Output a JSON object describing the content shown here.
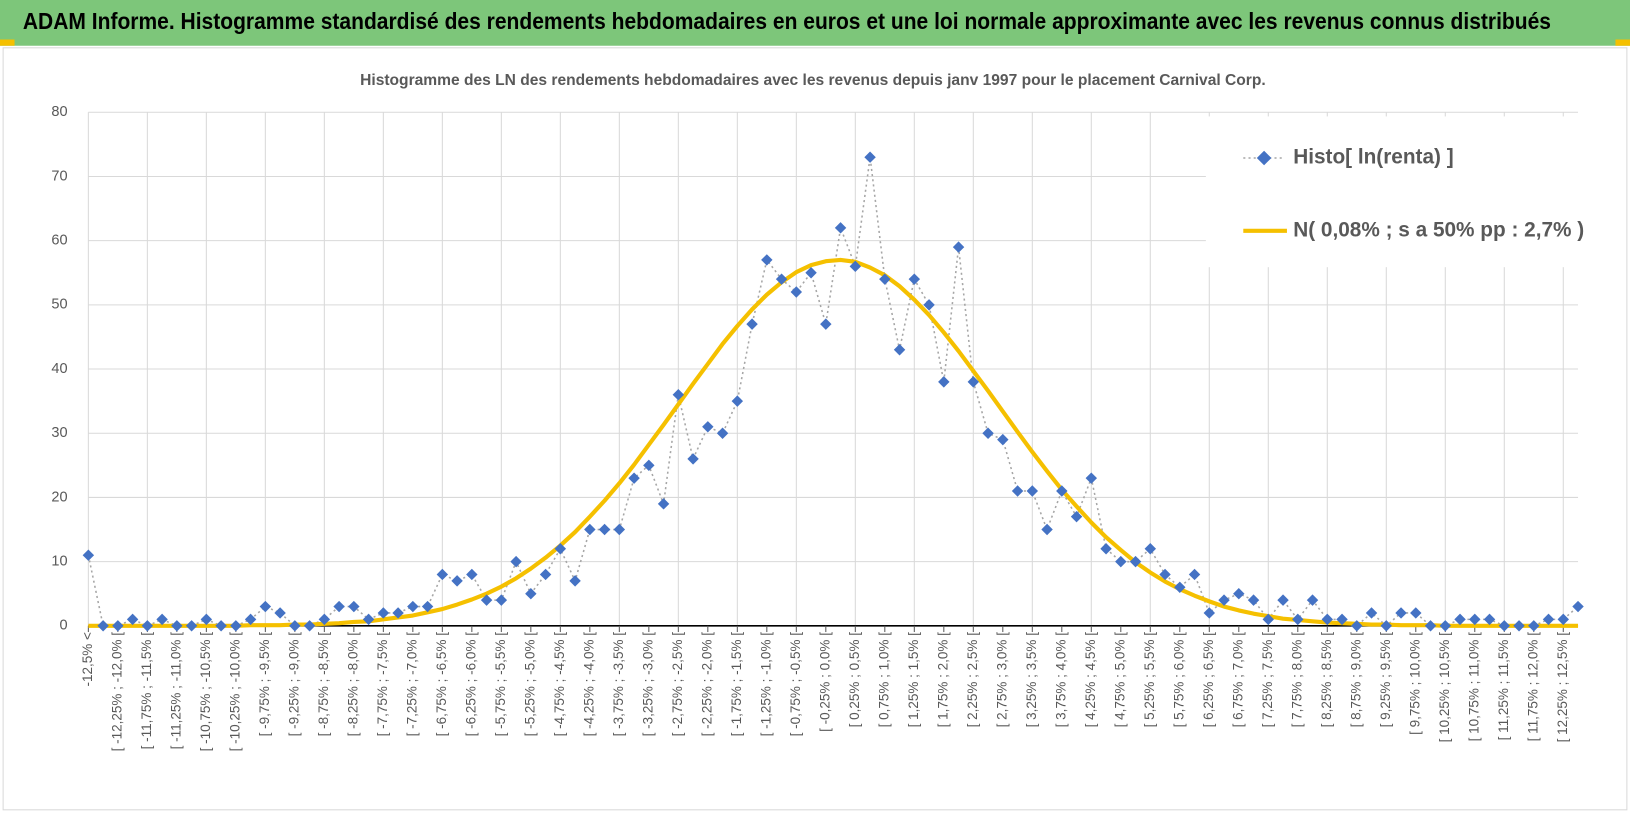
{
  "header": {
    "title": "ADAM Informe. Histogramme standardisé des rendements hebdomadaires en euros et une loi normale approximante avec les revenus connus distribués"
  },
  "chart_data": {
    "type": "line",
    "title": "Histogramme des LN des rendements hebdomadaires avec les revenus depuis janv 1997 pour le placement Carnival Corp.",
    "categories": [
      "-12,5% <",
      null,
      "[ -12,25% ; -12,0% [",
      null,
      "[ -11,75% ; -11,5% [",
      null,
      "[ -11,25% ; -11,0% [",
      null,
      "[ -10,75% ; -10,5% [",
      null,
      "[ -10,25% ; -10,0% [",
      null,
      "[ -9,75% ; -9,5% [",
      null,
      "[ -9,25% ; -9,0% [",
      null,
      "[ -8,75% ; -8,5% [",
      null,
      "[ -8,25% ; -8,0% [",
      null,
      "[ -7,75% ; -7,5% [",
      null,
      "[ -7,25% ; -7,0% [",
      null,
      "[ -6,75% ; -6,5% [",
      null,
      "[ -6,25% ; -6,0% [",
      null,
      "[ -5,75% ; -5,5% [",
      null,
      "[ -5,25% ; -5,0% [",
      null,
      "[ -4,75% ; -4,5% [",
      null,
      "[ -4,25% ; -4,0% [",
      null,
      "[ -3,75% ; -3,5% [",
      null,
      "[ -3,25% ; -3,0% [",
      null,
      "[ -2,75% ; -2,5% [",
      null,
      "[ -2,25% ; -2,0% [",
      null,
      "[ -1,75% ; -1,5% [",
      null,
      "[ -1,25% ; -1,0% [",
      null,
      "[ -0,75% ; -0,5% [",
      null,
      "[ -0,25% ; 0,0% [",
      null,
      "[ 0,25% ; 0,5% [",
      null,
      "[ 0,75% ; 1,0% [",
      null,
      "[ 1,25% ; 1,5% [",
      null,
      "[ 1,75% ; 2,0% [",
      null,
      "[ 2,25% ; 2,5% [",
      null,
      "[ 2,75% ; 3,0% [",
      null,
      "[ 3,25% ; 3,5% [",
      null,
      "[ 3,75% ; 4,0% [",
      null,
      "[ 4,25% ; 4,5% [",
      null,
      "[ 4,75% ; 5,0% [",
      null,
      "[ 5,25% ; 5,5% [",
      null,
      "[ 5,75% ; 6,0% [",
      null,
      "[ 6,25% ; 6,5% [",
      null,
      "[ 6,75% ; 7,0% [",
      null,
      "[ 7,25% ; 7,5% [",
      null,
      "[ 7,75% ; 8,0% [",
      null,
      "[ 8,25% ; 8,5% [",
      null,
      "[ 8,75% ; 9,0% [",
      null,
      "[ 9,25% ; 9,5% [",
      null,
      "[ 9,75% ; 10,0% [",
      null,
      "[ 10,25% ; 10,5% [",
      null,
      "[ 10,75% ; 11,0% [",
      null,
      "[ 11,25% ; 11,5% [",
      null,
      "[ 11,75% ; 12,0% [",
      null,
      "[ 12,25% ; 12,5% [",
      null
    ],
    "series": [
      {
        "name": "Histo[ ln(renta) ]",
        "color": "#4472c4",
        "line_color": "#a6a6a6",
        "values": [
          11,
          0,
          0,
          1,
          0,
          1,
          0,
          0,
          1,
          0,
          0,
          1,
          3,
          2,
          0,
          0,
          1,
          3,
          3,
          1,
          2,
          2,
          3,
          3,
          8,
          7,
          8,
          4,
          4,
          10,
          5,
          8,
          12,
          7,
          15,
          15,
          15,
          23,
          25,
          19,
          36,
          26,
          31,
          30,
          35,
          47,
          57,
          54,
          52,
          55,
          47,
          62,
          56,
          73,
          54,
          43,
          54,
          50,
          38,
          59,
          38,
          30,
          29,
          21,
          21,
          15,
          21,
          17,
          23,
          12,
          10,
          10,
          12,
          8,
          6,
          8,
          2,
          4,
          5,
          4,
          1,
          4,
          1,
          4,
          1,
          1,
          0,
          2,
          0,
          2,
          2,
          0,
          0,
          1,
          1,
          1,
          0,
          0,
          0,
          1,
          1,
          3
        ]
      },
      {
        "name": "N( 0,08% ; s a 50% pp : 2,7% )",
        "color": "#f5c000",
        "values": [
          0,
          0,
          0,
          0,
          0,
          0,
          0,
          0,
          0,
          0,
          0,
          0.1,
          0.1,
          0.1,
          0.2,
          0.2,
          0.3,
          0.4,
          0.6,
          0.7,
          1.0,
          1.3,
          1.6,
          2.1,
          2.6,
          3.3,
          4.1,
          5.0,
          6.1,
          7.4,
          8.9,
          10.6,
          12.5,
          14.6,
          17.0,
          19.5,
          22.2,
          25.1,
          28.2,
          31.3,
          34.5,
          37.7,
          40.8,
          43.9,
          46.7,
          49.3,
          51.6,
          53.5,
          55.1,
          56.2,
          56.8,
          57.0,
          56.7,
          55.8,
          54.6,
          52.9,
          50.8,
          48.4,
          45.7,
          42.8,
          39.7,
          36.6,
          33.4,
          30.2,
          27.1,
          24.1,
          21.2,
          18.6,
          16.1,
          13.8,
          11.8,
          9.9,
          8.3,
          6.9,
          5.7,
          4.7,
          3.8,
          3.0,
          2.4,
          1.9,
          1.5,
          1.1,
          0.9,
          0.7,
          0.5,
          0.4,
          0.3,
          0.2,
          0.2,
          0.1,
          0.1,
          0.1,
          0,
          0,
          0,
          0,
          0,
          0,
          0,
          0,
          0,
          0
        ]
      }
    ],
    "ylim": [
      0,
      80
    ],
    "yticks": [
      0,
      10,
      20,
      30,
      40,
      50,
      60,
      70,
      80
    ],
    "grid": true,
    "legend": "upper right"
  }
}
